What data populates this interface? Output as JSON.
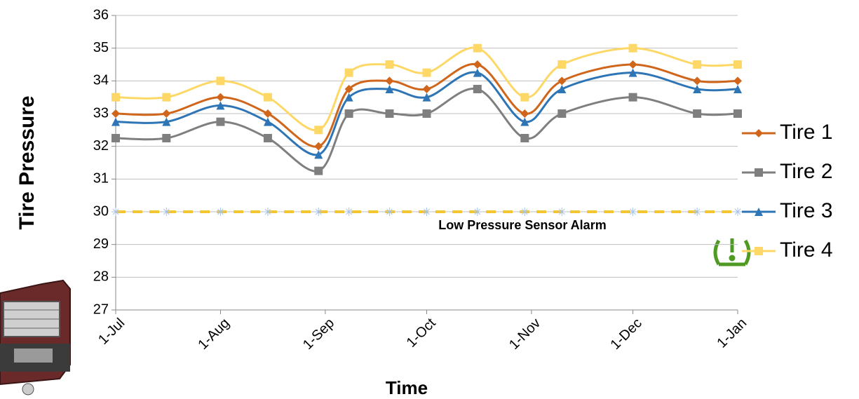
{
  "chart_data": {
    "type": "line",
    "y_label": "Tire Pressure",
    "x_label": "Time",
    "annotation": "Low Pressure Sensor Alarm",
    "x": [
      "1-Jul",
      "16-Jul",
      "1-Aug",
      "15-Aug",
      "30-Aug",
      "8-Sep",
      "20-Sep",
      "1-Oct",
      "16-Oct",
      "30-Oct",
      "10-Nov",
      "1-Dec",
      "20-Dec",
      "1-Jan"
    ],
    "series": [
      {
        "name": "Tire 1",
        "color": "#d0661c",
        "marker": "diamond",
        "values": [
          33,
          33,
          33.5,
          33,
          32,
          33.75,
          34,
          33.75,
          34.5,
          33,
          34,
          34.5,
          34,
          34
        ]
      },
      {
        "name": "Tire 2",
        "color": "#7f7f7f",
        "marker": "square",
        "values": [
          32.25,
          32.25,
          32.75,
          32.25,
          31.25,
          33,
          33,
          33,
          33.75,
          32.25,
          33,
          33.5,
          33,
          33
        ]
      },
      {
        "name": "Tire 3",
        "color": "#2e75b6",
        "marker": "triangle",
        "values": [
          32.75,
          32.75,
          33.25,
          32.75,
          31.75,
          33.5,
          33.75,
          33.5,
          34.25,
          32.75,
          33.75,
          34.25,
          33.75,
          33.75
        ]
      },
      {
        "name": "Tire 4",
        "color": "#fdd867",
        "marker": "square",
        "values": [
          33.5,
          33.5,
          34,
          33.5,
          32.5,
          34.25,
          34.5,
          34.25,
          35,
          33.5,
          34.5,
          35,
          34.5,
          34.5
        ]
      }
    ],
    "alarm": {
      "color": "#f3c530",
      "marker_color": "#a9c4e8",
      "values": [
        30,
        30,
        30,
        30,
        30,
        30,
        30,
        30,
        30,
        30,
        30,
        30,
        30,
        30
      ]
    },
    "xlim": [
      "1-Jul",
      "1-Jan"
    ],
    "xticks": [
      "1-Jul",
      "1-Aug",
      "1-Sep",
      "1-Oct",
      "1-Nov",
      "1-Dec",
      "1-Jan"
    ],
    "ylim": [
      27,
      36
    ],
    "yticks": [
      27,
      28,
      29,
      30,
      31,
      32,
      33,
      34,
      35,
      36
    ],
    "grid": true,
    "legend": "right"
  }
}
